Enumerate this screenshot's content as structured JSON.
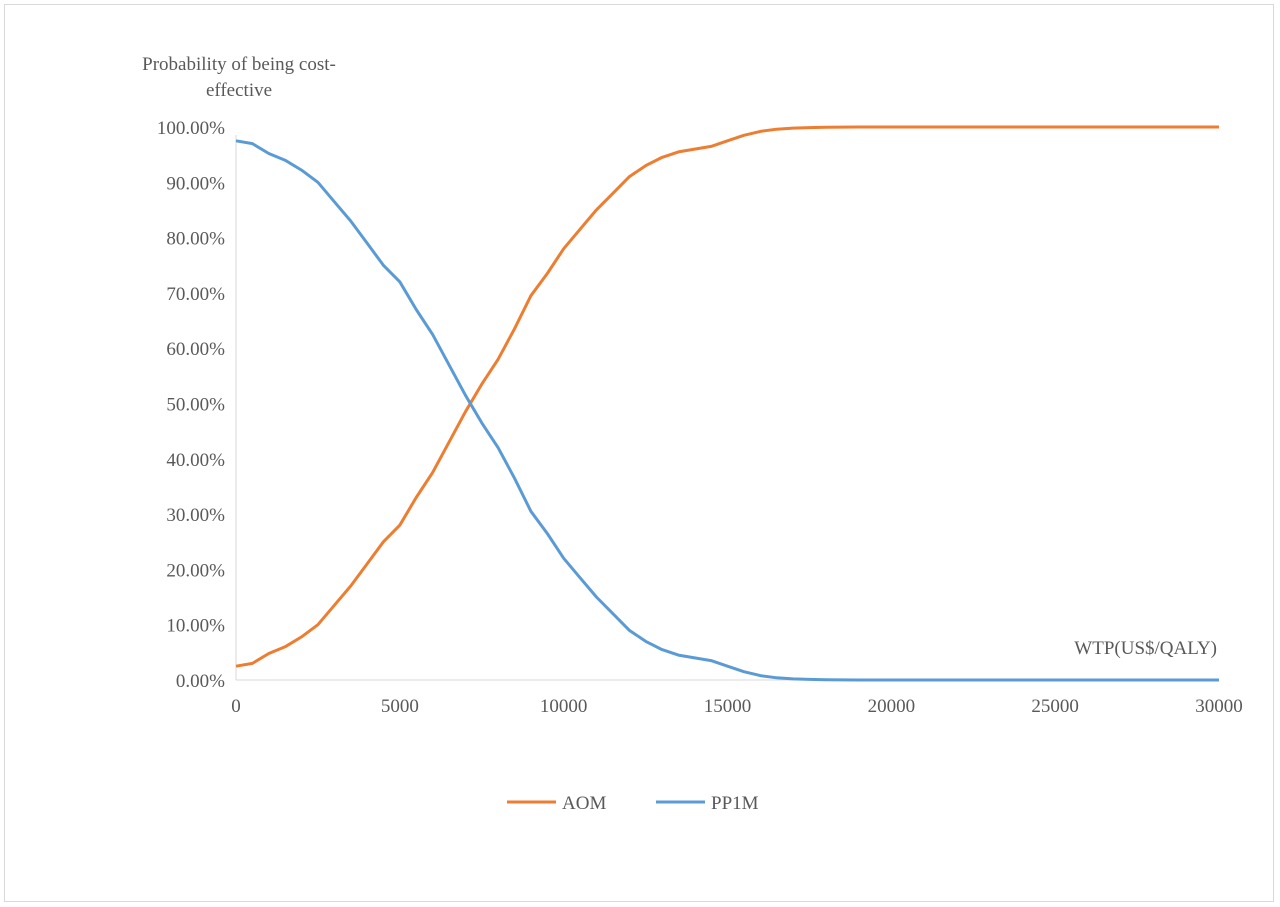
{
  "chart_data": {
    "type": "line",
    "ylabel_lines": [
      "Probability of being cost-",
      "effective"
    ],
    "xlabel": "WTP(US$/QALY)",
    "xlim": [
      0,
      30000
    ],
    "ylim": [
      0,
      100
    ],
    "x_ticks": [
      "0",
      "5000",
      "10000",
      "15000",
      "20000",
      "25000",
      "30000"
    ],
    "y_ticks": [
      "0.00%",
      "10.00%",
      "20.00%",
      "30.00%",
      "40.00%",
      "50.00%",
      "60.00%",
      "70.00%",
      "80.00%",
      "90.00%",
      "100.00%"
    ],
    "grid": false,
    "legend": "bottom",
    "series": [
      {
        "name": "AOM",
        "color": "#ED7D31",
        "x": [
          0,
          500,
          1000,
          1500,
          2000,
          2500,
          3000,
          3500,
          4000,
          4500,
          5000,
          5500,
          6000,
          6500,
          7000,
          7500,
          8000,
          8500,
          9000,
          9500,
          10000,
          10500,
          11000,
          11500,
          12000,
          12500,
          13000,
          13500,
          14000,
          14500,
          15000,
          15500,
          16000,
          16500,
          17000,
          17500,
          18000,
          18500,
          19000,
          20000,
          21000,
          22000,
          25000,
          30000
        ],
        "values": [
          2.5,
          3.0,
          4.8,
          6.0,
          7.8,
          10.0,
          13.5,
          17.0,
          21.0,
          25.0,
          28.0,
          33.0,
          37.5,
          43.0,
          48.5,
          53.5,
          58.0,
          63.5,
          69.5,
          73.5,
          78.0,
          81.5,
          85.0,
          88.0,
          91.0,
          93.0,
          94.5,
          95.5,
          96.0,
          96.5,
          97.5,
          98.5,
          99.2,
          99.6,
          99.8,
          99.9,
          99.95,
          99.98,
          100.0,
          100.0,
          100.0,
          100.0,
          100.0,
          100.0
        ]
      },
      {
        "name": "PP1M",
        "color": "#5B9BD5",
        "x": [
          0,
          500,
          1000,
          1500,
          2000,
          2500,
          3000,
          3500,
          4000,
          4500,
          5000,
          5500,
          6000,
          6500,
          7000,
          7500,
          8000,
          8500,
          9000,
          9500,
          10000,
          10500,
          11000,
          11500,
          12000,
          12500,
          13000,
          13500,
          14000,
          14500,
          15000,
          15500,
          16000,
          16500,
          17000,
          17500,
          18000,
          18500,
          19000,
          20000,
          21000,
          22000,
          25000,
          30000
        ],
        "values": [
          97.5,
          97.0,
          95.2,
          94.0,
          92.2,
          90.0,
          86.5,
          83.0,
          79.0,
          75.0,
          72.0,
          67.0,
          62.5,
          57.0,
          51.5,
          46.5,
          42.0,
          36.5,
          30.5,
          26.5,
          22.0,
          18.5,
          15.0,
          12.0,
          9.0,
          7.0,
          5.5,
          4.5,
          4.0,
          3.5,
          2.5,
          1.5,
          0.8,
          0.4,
          0.2,
          0.1,
          0.05,
          0.02,
          0.0,
          0.0,
          0.0,
          0.0,
          0.0,
          0.0
        ]
      }
    ]
  }
}
